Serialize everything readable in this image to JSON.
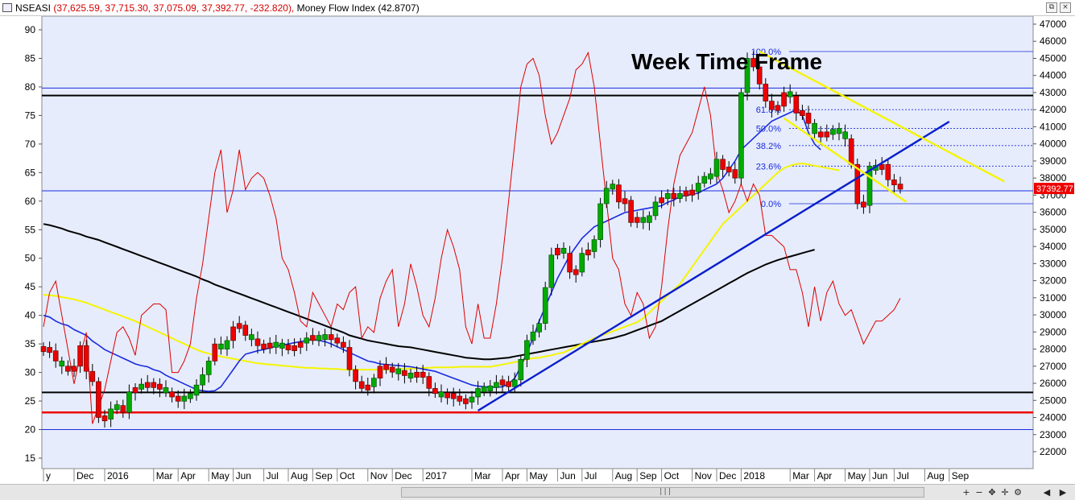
{
  "window": {
    "symbol": "NSEASI",
    "ohlc_text": "(37,625.59, 37,715.30, 37,075.09, 37,392.77, -232.820),",
    "indicator_text": "Money Flow Index (42.8707)",
    "restore_label": "⧉",
    "close_label": "×"
  },
  "colors": {
    "up_candle": "#00aa00",
    "down_candle": "#ee0000",
    "mfi_line": "#dd0000",
    "ma_blue": "#1a2be0",
    "ma_yellow": "#f5f500",
    "ma_black": "#000000",
    "trendline": "#0a1ecc",
    "channel": "#f5f500",
    "fib": "#1a2be0",
    "price_tag": "#ee0000"
  },
  "chart_data": {
    "type": "candlestick",
    "title": "Week Time Frame",
    "left_axis": {
      "name": "Money Flow Index",
      "range": [
        14,
        92
      ],
      "ticks": [
        15,
        20,
        25,
        30,
        35,
        40,
        45,
        50,
        55,
        60,
        65,
        70,
        75,
        80,
        85,
        90
      ]
    },
    "right_axis": {
      "range": [
        21000,
        47400
      ],
      "ticks": [
        22000,
        23000,
        24000,
        25000,
        26000,
        27000,
        28000,
        29000,
        30000,
        31000,
        32000,
        33000,
        34000,
        35000,
        36000,
        37000,
        38000,
        39000,
        40000,
        41000,
        42000,
        43000,
        44000,
        45000,
        46000,
        47000
      ]
    },
    "x_labels": [
      {
        "t": 0,
        "label": "y"
      },
      {
        "t": 5,
        "label": "Dec"
      },
      {
        "t": 10,
        "label": "2016"
      },
      {
        "t": 18,
        "label": "Mar"
      },
      {
        "t": 22,
        "label": "Apr"
      },
      {
        "t": 27,
        "label": "May"
      },
      {
        "t": 31,
        "label": "Jun"
      },
      {
        "t": 36,
        "label": "Jul"
      },
      {
        "t": 40,
        "label": "Aug"
      },
      {
        "t": 44,
        "label": "Sep"
      },
      {
        "t": 48,
        "label": "Oct"
      },
      {
        "t": 53,
        "label": "Nov"
      },
      {
        "t": 57,
        "label": "Dec"
      },
      {
        "t": 62,
        "label": "2017"
      },
      {
        "t": 70,
        "label": "Mar"
      },
      {
        "t": 75,
        "label": "Apr"
      },
      {
        "t": 79,
        "label": "May"
      },
      {
        "t": 84,
        "label": "Jun"
      },
      {
        "t": 88,
        "label": "Jul"
      },
      {
        "t": 93,
        "label": "Aug"
      },
      {
        "t": 97,
        "label": "Sep"
      },
      {
        "t": 101,
        "label": "Oct"
      },
      {
        "t": 106,
        "label": "Nov"
      },
      {
        "t": 110,
        "label": "Dec"
      },
      {
        "t": 114,
        "label": "2018"
      },
      {
        "t": 122,
        "label": "Mar"
      },
      {
        "t": 126,
        "label": "Apr"
      },
      {
        "t": 131,
        "label": "May"
      },
      {
        "t": 135,
        "label": "Jun"
      },
      {
        "t": 139,
        "label": "Jul"
      },
      {
        "t": 144,
        "label": "Aug"
      },
      {
        "t": 148,
        "label": "Sep"
      }
    ],
    "price_close": [
      28000,
      27900,
      27300,
      27000,
      26700,
      27000,
      28200,
      26700,
      26100,
      24000,
      23900,
      24500,
      24700,
      24300,
      25500,
      25700,
      25900,
      25900,
      25900,
      25700,
      25500,
      25200,
      25000,
      25200,
      25300,
      25900,
      26500,
      27300,
      28300,
      28000,
      28500,
      29300,
      29400,
      28800,
      28600,
      28200,
      28100,
      28300,
      28200,
      28200,
      28000,
      28100,
      28400,
      28600,
      28700,
      28600,
      28800,
      28600,
      28400,
      28100,
      26800,
      26100,
      25700,
      25800,
      26300,
      27000,
      26900,
      26700,
      26700,
      26500,
      26400,
      26600,
      26400,
      25700,
      25400,
      25300,
      25300,
      25200,
      25000,
      24900,
      25200,
      25700,
      25600,
      25800,
      26000,
      26100,
      25800,
      26200,
      27400,
      28500,
      29000,
      29500,
      31600,
      33500,
      33900,
      33600,
      32500,
      32500,
      33600,
      33700,
      34400,
      36500,
      37400,
      37600,
      36600,
      36700,
      35400,
      35700,
      35400,
      35800,
      36600,
      36800,
      37100,
      36800,
      37100,
      37100,
      37200,
      37700,
      38100,
      38100,
      39100,
      38500,
      38500,
      38000,
      43000,
      45000,
      44500,
      43500,
      42500,
      42000,
      42200,
      43000,
      42800,
      41800,
      41800,
      41200,
      40600,
      40500,
      40600,
      40800,
      40700,
      40300,
      38800,
      36500,
      36400,
      38700,
      38500,
      38800,
      37900,
      37600,
      37400
    ],
    "candle_up_weeks": [
      3,
      11,
      12,
      14,
      16,
      20,
      23,
      24,
      25,
      26,
      27,
      29,
      30,
      34,
      38,
      39,
      43,
      45,
      46,
      54,
      58,
      60,
      65,
      70,
      71,
      72,
      73,
      74,
      77,
      78,
      79,
      80,
      81,
      82,
      83,
      85,
      88,
      90,
      91,
      92,
      93,
      98,
      99,
      100,
      102,
      104,
      107,
      108,
      109,
      110,
      114,
      115,
      122,
      126,
      129,
      130,
      131,
      135,
      136
    ],
    "mfi": [
      38,
      44,
      46,
      40,
      34,
      28,
      33,
      37,
      21,
      24,
      27,
      32,
      37,
      38,
      36,
      33,
      40,
      41,
      42,
      42,
      41,
      30,
      30,
      32,
      35,
      43,
      49,
      57,
      65,
      69,
      58,
      62,
      69,
      62,
      64,
      65,
      64,
      61,
      57,
      50,
      48,
      44,
      39,
      38,
      44,
      42,
      40,
      38,
      42,
      41,
      44,
      45,
      36,
      38,
      37,
      43,
      46,
      48,
      38,
      42,
      49,
      45,
      40,
      38,
      43,
      50,
      55,
      52,
      48,
      38,
      35,
      42,
      36,
      36,
      42,
      50,
      60,
      70,
      80,
      84,
      85,
      82,
      75,
      70,
      72,
      75,
      78,
      83,
      84,
      86,
      80,
      70,
      60,
      50,
      48,
      42,
      40,
      44,
      42,
      36,
      38,
      45,
      55,
      63,
      68,
      70,
      72,
      76,
      80,
      75,
      65,
      62,
      58,
      60,
      63,
      60,
      63,
      61,
      54,
      54,
      53,
      52,
      48,
      48,
      44,
      38,
      45,
      39,
      44,
      46,
      42,
      40,
      41,
      38,
      35,
      37,
      39,
      39,
      40,
      41,
      43
    ],
    "ma_blue": [
      40,
      39.7,
      39,
      38.5,
      38.2,
      37.5,
      37,
      36.5,
      35.5,
      34.8,
      34,
      33.5,
      33,
      32.5,
      32,
      31.5,
      31.2,
      31,
      30.5,
      30.2,
      29.5,
      29,
      28.5,
      28,
      27.5,
      27,
      26.8,
      26.7,
      26.8,
      27.5,
      29,
      30.5,
      32,
      33.2,
      33.5,
      33.8,
      34,
      34.3,
      34.6,
      34.8,
      35,
      35.2,
      35.4,
      35.6,
      35.8,
      35.6,
      35.4,
      35,
      34.5,
      34,
      33.5,
      33,
      32.5,
      32,
      31.8,
      31.5,
      31.4,
      31.3,
      31.2,
      31.1,
      31,
      30.8,
      30.6,
      30.4,
      30.2,
      29.8,
      29.4,
      29,
      28.6,
      28.2,
      27.8,
      27.6,
      27.5,
      27.4,
      27.4,
      27.5,
      28,
      29,
      31,
      33.5,
      36,
      39,
      41.5,
      44,
      46.5,
      48.5,
      50.5,
      52,
      53.5,
      54.5,
      55.5,
      56,
      56.5,
      57,
      57.5,
      58,
      58.2,
      58.4,
      58.6,
      58.8,
      59,
      59.2,
      59.8,
      60.2,
      60.8,
      61,
      61.2,
      61.4,
      62,
      62.5,
      63,
      64,
      65.5,
      67,
      69,
      70,
      71,
      72,
      73,
      74,
      74.5,
      75,
      75.5,
      76,
      75,
      72,
      70,
      69
    ],
    "ma_yellow": [
      43.6,
      43.5,
      43.4,
      43.2,
      43,
      42.8,
      42.5,
      42.2,
      41.8,
      41.4,
      41,
      40.6,
      40.2,
      39.8,
      39.4,
      39,
      38.5,
      38,
      37.5,
      37,
      36.5,
      36,
      35.5,
      35,
      34.5,
      34,
      33.6,
      33.3,
      33,
      32.8,
      32.6,
      32.4,
      32.2,
      32,
      31.8,
      31.6,
      31.5,
      31.4,
      31.3,
      31.2,
      31.1,
      31,
      30.9,
      30.8,
      30.8,
      30.7,
      30.7,
      30.6,
      30.6,
      30.5,
      30.5,
      30.5,
      30.5,
      30.5,
      30.5,
      30.5,
      30.5,
      30.5,
      30.6,
      30.6,
      30.7,
      30.7,
      30.8,
      30.8,
      30.9,
      30.9,
      30.9,
      30.9,
      31,
      31,
      31,
      31,
      31,
      31,
      31.2,
      31.4,
      31.6,
      31.8,
      32,
      32.3,
      32.5,
      32.6,
      32.8,
      33,
      33.3,
      33.5,
      34,
      34.5,
      35,
      35.5,
      36,
      36.4,
      36.8,
      37.2,
      37.6,
      38,
      38.4,
      38.8,
      39.5,
      40.5,
      41.5,
      42.5,
      43.5,
      44.5,
      45.5,
      47,
      48.5,
      50,
      51.5,
      53,
      54.5,
      56,
      57,
      58,
      59,
      60,
      61,
      62,
      63,
      64,
      65,
      65.8,
      66.2,
      66.5,
      66.6,
      66.4,
      66.2,
      66,
      65.8,
      65.6,
      65.4
    ],
    "ma_black": [
      56,
      55.8,
      55.5,
      55.2,
      54.8,
      54.5,
      54.2,
      53.8,
      53.5,
      53.2,
      52.8,
      52.4,
      52,
      51.6,
      51.2,
      50.8,
      50.4,
      50,
      49.6,
      49.2,
      48.8,
      48.4,
      48,
      47.6,
      47.2,
      46.8,
      46.3,
      45.9,
      45.4,
      45,
      44.6,
      44.2,
      43.8,
      43.4,
      43,
      42.6,
      42.2,
      41.8,
      41.4,
      41,
      40.6,
      40.2,
      39.8,
      39.4,
      39,
      38.6,
      38.2,
      37.8,
      37.4,
      37,
      36.5,
      36.2,
      35.9,
      35.6,
      35.4,
      35.2,
      35,
      34.8,
      34.6,
      34.5,
      34.4,
      34.2,
      34,
      33.8,
      33.6,
      33.4,
      33.2,
      33,
      32.8,
      32.6,
      32.5,
      32.4,
      32.3,
      32.3,
      32.4,
      32.5,
      32.6,
      32.8,
      33,
      33.2,
      33.4,
      33.6,
      33.8,
      34,
      34.2,
      34.4,
      34.6,
      34.8,
      35,
      35.2,
      35.4,
      35.6,
      35.8,
      36,
      36.3,
      36.6,
      37,
      37.4,
      37.8,
      38.2,
      38.6,
      39,
      39.6,
      40.2,
      40.8,
      41.4,
      42,
      42.6,
      43.2,
      43.8,
      44.4,
      45,
      45.6,
      46.2,
      46.8,
      47.4,
      47.9,
      48.4,
      48.9,
      49.3,
      49.7,
      50,
      50.3,
      50.6,
      50.9,
      51.2,
      51.5
    ],
    "hlines_mfi": [
      {
        "value": 79.8,
        "color": "#1a2be0",
        "width": 1
      },
      {
        "value": 78.5,
        "color": "#000000",
        "width": 2
      },
      {
        "value": 61.8,
        "color": "#1a2be0",
        "width": 1
      },
      {
        "value": 26.5,
        "color": "#000000",
        "width": 2
      },
      {
        "value": 23,
        "color": "#ee0000",
        "width": 2.5
      },
      {
        "value": 20,
        "color": "#1a2be0",
        "width": 1
      }
    ],
    "trendline": [
      {
        "t": 71,
        "price": 24400
      },
      {
        "t": 148,
        "price": 41300
      }
    ],
    "channel_upper": [
      {
        "t": 117,
        "price": 45400
      },
      {
        "t": 157,
        "price": 37800
      }
    ],
    "channel_lower": [
      {
        "t": 121,
        "price": 41500
      },
      {
        "t": 141,
        "price": 36600
      }
    ],
    "fibonacci": [
      {
        "label": "100.0%",
        "price": 45400
      },
      {
        "label": "61.8%",
        "price": 42000
      },
      {
        "label": "50.0%",
        "price": 40900
      },
      {
        "label": "38.2%",
        "price": 39900
      },
      {
        "label": "23.6%",
        "price": 38700
      },
      {
        "label": "0.0%",
        "price": 36500
      }
    ],
    "last_price_label": "37392.77",
    "last_price_value": 37392.77
  }
}
